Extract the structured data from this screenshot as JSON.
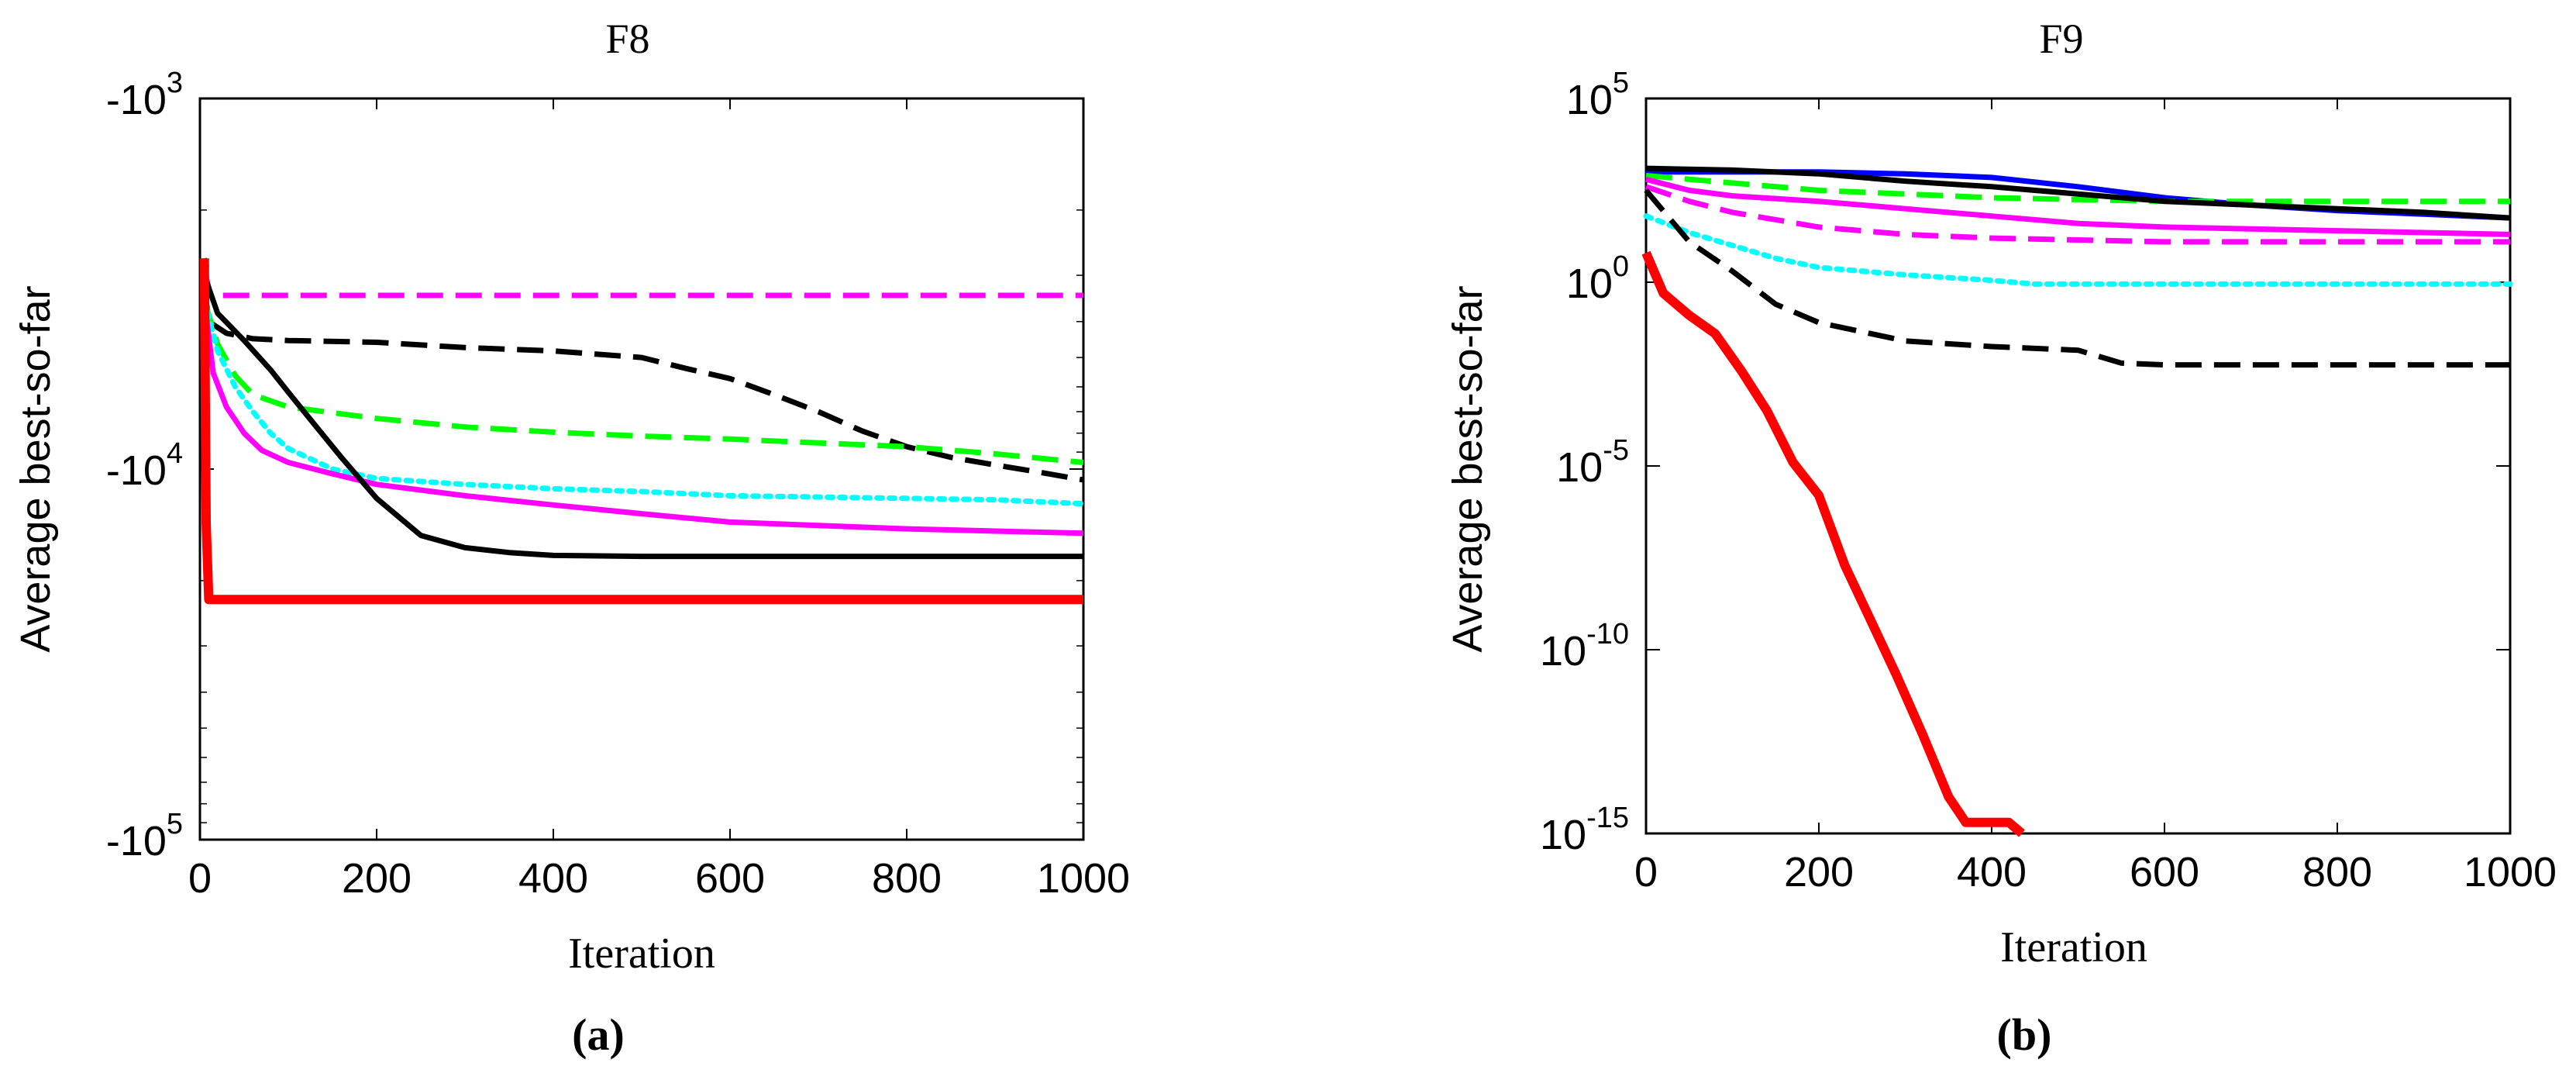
{
  "chart_data": [
    {
      "type": "line",
      "panel_label": "(a)",
      "title": "F8",
      "xlabel": "Iteration",
      "ylabel": "Average best-so-far",
      "xlim": [
        0,
        1000
      ],
      "xticks": [
        "0",
        "200",
        "400",
        "600",
        "800",
        "1000"
      ],
      "yscale": "symlog-negative",
      "ylim": [
        -100000,
        -1000
      ],
      "yticks": [
        {
          "base": "-10",
          "exp": "3"
        },
        {
          "base": "-10",
          "exp": "4"
        },
        {
          "base": "-10",
          "exp": "5"
        }
      ],
      "series": [
        {
          "name": "magenta-dashed",
          "color": "#ff00ff",
          "style": "dashed",
          "width": 7,
          "x": [
            5,
            12,
            1000
          ],
          "y": [
            -2900,
            -3400,
            -3400
          ]
        },
        {
          "name": "black-dashed",
          "color": "#000000",
          "style": "dashed",
          "width": 7,
          "x": [
            5,
            10,
            30,
            60,
            100,
            200,
            300,
            400,
            450,
            500,
            550,
            600,
            650,
            700,
            750,
            800,
            850,
            900,
            950,
            1000
          ],
          "y": [
            -3200,
            -4000,
            -4300,
            -4450,
            -4500,
            -4550,
            -4700,
            -4800,
            -4900,
            -5000,
            -5350,
            -5700,
            -6300,
            -7000,
            -7900,
            -8700,
            -9300,
            -9750,
            -10200,
            -10700
          ]
        },
        {
          "name": "green-dashed",
          "color": "#00ff00",
          "style": "dashed",
          "width": 7,
          "x": [
            5,
            20,
            40,
            60,
            100,
            200,
            300,
            400,
            500,
            600,
            700,
            800,
            900,
            1000
          ],
          "y": [
            -3500,
            -4600,
            -5600,
            -6300,
            -6800,
            -7300,
            -7700,
            -7950,
            -8150,
            -8300,
            -8500,
            -8700,
            -9100,
            -9600
          ]
        },
        {
          "name": "cyan-dotted",
          "color": "#00ffff",
          "style": "dotted",
          "width": 7,
          "x": [
            5,
            20,
            40,
            60,
            80,
            100,
            150,
            200,
            300,
            400,
            500,
            600,
            700,
            800,
            900,
            1000
          ],
          "y": [
            -3500,
            -4800,
            -6000,
            -7000,
            -8000,
            -8800,
            -10000,
            -10600,
            -11000,
            -11300,
            -11500,
            -11800,
            -11900,
            -12000,
            -12100,
            -12400
          ]
        },
        {
          "name": "magenta-solid",
          "color": "#ff00ff",
          "style": "solid",
          "width": 7,
          "x": [
            5,
            15,
            30,
            50,
            70,
            100,
            150,
            200,
            300,
            400,
            500,
            600,
            700,
            800,
            900,
            1000
          ],
          "y": [
            -3500,
            -5500,
            -6800,
            -8000,
            -8900,
            -9600,
            -10300,
            -11000,
            -11800,
            -12500,
            -13200,
            -13900,
            -14200,
            -14500,
            -14700,
            -14900
          ]
        },
        {
          "name": "black-solid",
          "color": "#000000",
          "style": "solid",
          "width": 7,
          "x": [
            5,
            20,
            50,
            80,
            100,
            130,
            160,
            200,
            250,
            300,
            350,
            400,
            500,
            600,
            800,
            1000
          ],
          "y": [
            -3000,
            -3800,
            -4500,
            -5400,
            -6200,
            -7600,
            -9300,
            -12000,
            -15100,
            -16300,
            -16800,
            -17100,
            -17200,
            -17200,
            -17200,
            -17200
          ]
        },
        {
          "name": "blue-start-marker",
          "color": "#0000ff",
          "style": "solid",
          "width": 6,
          "x": [
            5,
            8
          ],
          "y": [
            -2700,
            -2850
          ]
        },
        {
          "name": "red-solid",
          "color": "#ff0000",
          "style": "solid",
          "width": 12,
          "x": [
            5,
            7,
            10,
            1000
          ],
          "y": [
            -2700,
            -14000,
            -22500,
            -22500
          ]
        }
      ]
    },
    {
      "type": "line",
      "panel_label": "(b)",
      "title": "F9",
      "xlabel": "Iteration",
      "ylabel": "Average best-so-far",
      "xlim": [
        0,
        1000
      ],
      "xticks": [
        "0",
        "200",
        "400",
        "600",
        "800",
        "1000"
      ],
      "yscale": "log",
      "ylim_exp": [
        -15,
        5
      ],
      "yticks": [
        {
          "base": "10",
          "exp": "5"
        },
        {
          "base": "10",
          "exp": "0"
        },
        {
          "base": "10",
          "exp": "-5"
        },
        {
          "base": "10",
          "exp": "-10"
        },
        {
          "base": "10",
          "exp": "-15"
        }
      ],
      "series": [
        {
          "name": "blue-solid",
          "color": "#0000ff",
          "style": "solid",
          "width": 7,
          "x": [
            0,
            100,
            200,
            300,
            400,
            500,
            600,
            700,
            800,
            900,
            1000
          ],
          "y_exp": [
            3.0,
            3.0,
            3.0,
            2.95,
            2.85,
            2.6,
            2.3,
            2.1,
            1.95,
            1.85,
            1.75
          ]
        },
        {
          "name": "green-dashed",
          "color": "#00ff00",
          "style": "dashed",
          "width": 7,
          "x": [
            0,
            100,
            200,
            300,
            400,
            500,
            600,
            700,
            800,
            900,
            1000
          ],
          "y_exp": [
            2.9,
            2.7,
            2.5,
            2.4,
            2.3,
            2.25,
            2.2,
            2.2,
            2.2,
            2.2,
            2.2
          ]
        },
        {
          "name": "black-solid",
          "color": "#000000",
          "style": "solid",
          "width": 7,
          "x": [
            0,
            100,
            200,
            300,
            400,
            500,
            600,
            700,
            800,
            900,
            1000
          ],
          "y_exp": [
            3.1,
            3.05,
            2.95,
            2.75,
            2.6,
            2.4,
            2.2,
            2.1,
            2.0,
            1.9,
            1.75
          ]
        },
        {
          "name": "magenta-solid",
          "color": "#ff00ff",
          "style": "solid",
          "width": 7,
          "x": [
            0,
            50,
            100,
            200,
            300,
            400,
            500,
            600,
            700,
            800,
            900,
            1000
          ],
          "y_exp": [
            2.8,
            2.5,
            2.35,
            2.2,
            2.0,
            1.8,
            1.6,
            1.5,
            1.45,
            1.4,
            1.35,
            1.3
          ]
        },
        {
          "name": "magenta-dashed",
          "color": "#ff00ff",
          "style": "dashed",
          "width": 7,
          "x": [
            0,
            50,
            100,
            200,
            300,
            400,
            500,
            600,
            700,
            800,
            900,
            1000
          ],
          "y_exp": [
            2.6,
            2.2,
            1.9,
            1.5,
            1.3,
            1.2,
            1.15,
            1.1,
            1.1,
            1.1,
            1.1,
            1.1
          ]
        },
        {
          "name": "cyan-dotted",
          "color": "#00ffff",
          "style": "dotted",
          "width": 7,
          "x": [
            0,
            50,
            100,
            150,
            200,
            300,
            400,
            450,
            500,
            600,
            800,
            1000
          ],
          "y_exp": [
            1.8,
            1.35,
            1.0,
            0.65,
            0.4,
            0.2,
            0.05,
            -0.05,
            -0.05,
            -0.05,
            -0.05,
            -0.05
          ]
        },
        {
          "name": "black-dashed",
          "color": "#000000",
          "style": "dashed",
          "width": 7,
          "x": [
            0,
            25,
            50,
            100,
            150,
            200,
            300,
            400,
            500,
            550,
            600,
            800,
            1000
          ],
          "y_exp": [
            2.5,
            1.8,
            1.1,
            0.3,
            -0.6,
            -1.1,
            -1.6,
            -1.75,
            -1.85,
            -2.2,
            -2.25,
            -2.25,
            -2.25
          ]
        },
        {
          "name": "red-solid",
          "color": "#ff0000",
          "style": "solid",
          "width": 12,
          "x": [
            0,
            20,
            50,
            80,
            110,
            140,
            170,
            200,
            230,
            260,
            290,
            320,
            350,
            370,
            380,
            400,
            420,
            435
          ],
          "y_exp": [
            0.8,
            -0.3,
            -0.9,
            -1.4,
            -2.4,
            -3.5,
            -4.9,
            -5.8,
            -7.7,
            -9.2,
            -10.7,
            -12.3,
            -14.0,
            -14.7,
            -14.7,
            -14.7,
            -14.7,
            -15.0
          ]
        }
      ]
    }
  ]
}
